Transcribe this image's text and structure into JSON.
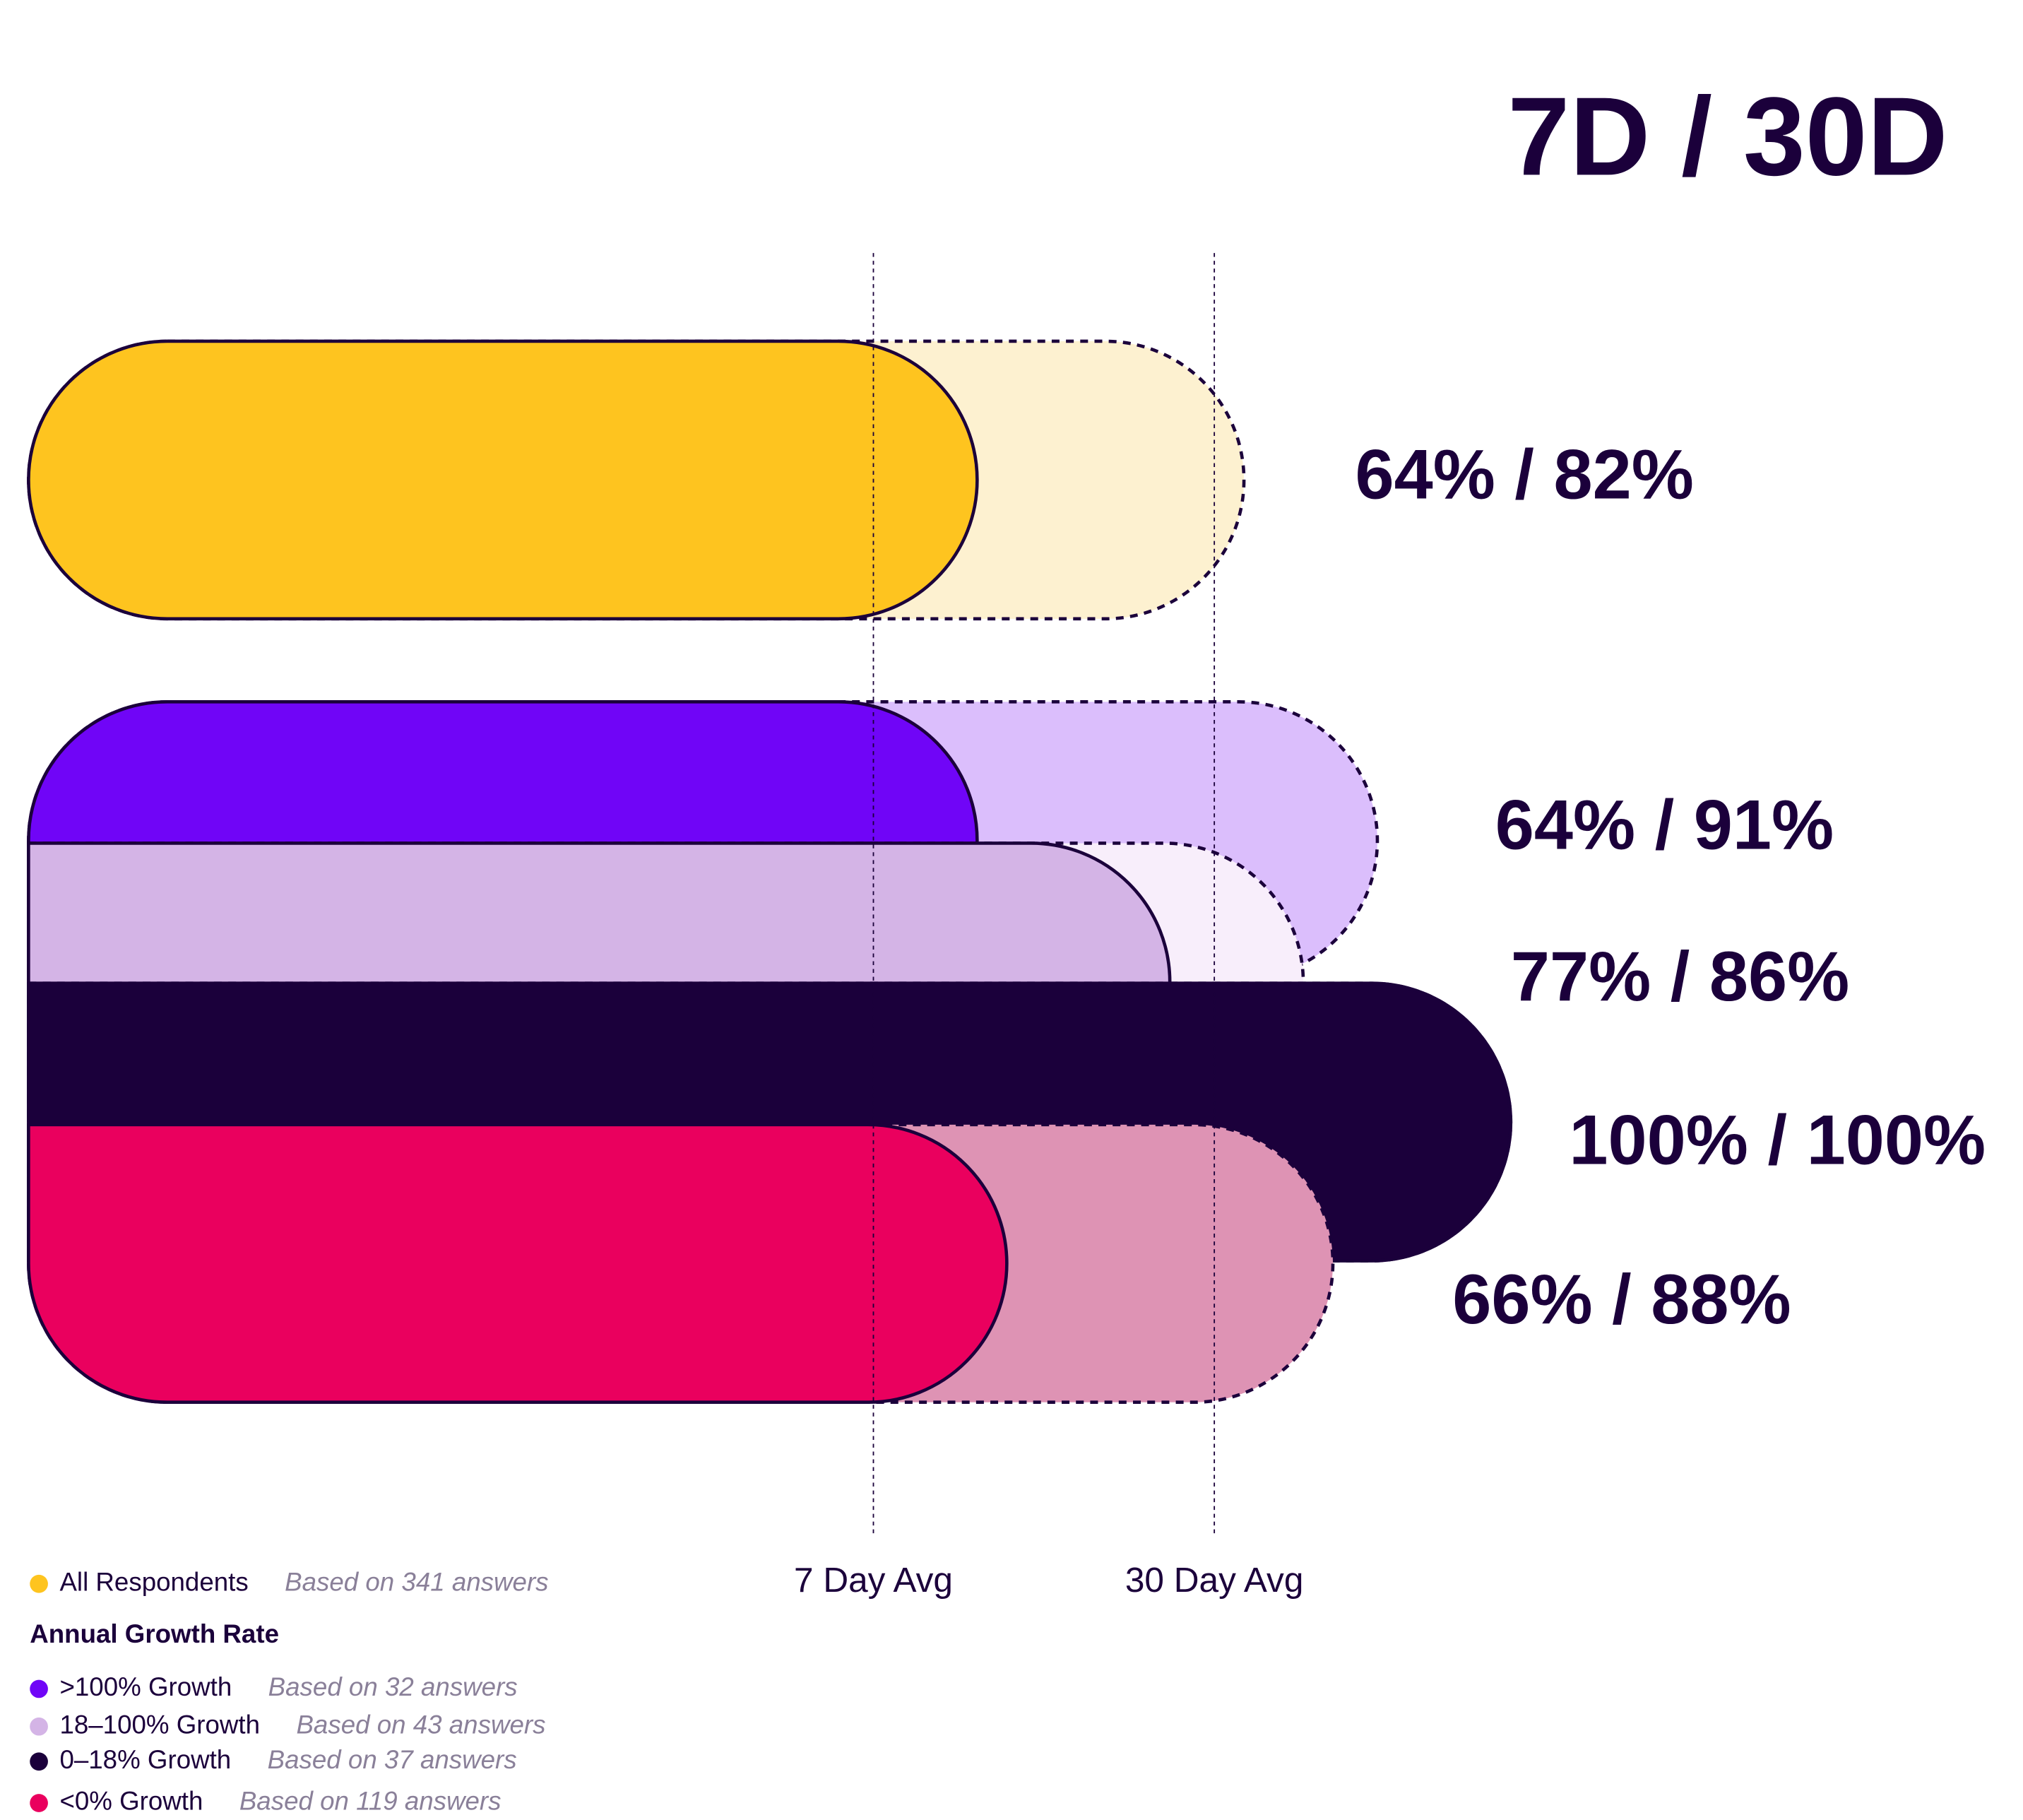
{
  "chart_data": {
    "type": "bar",
    "title": "7D / 30D",
    "xlim": [
      0,
      100
    ],
    "series": [
      {
        "name": "All Respondents",
        "note": "Based on 341 answers",
        "color": "#fec41f",
        "ghost_color": "#fdf1d0",
        "values": [
          64,
          82
        ],
        "label": "64% / 82%"
      },
      {
        "name": ">100% Growth",
        "note": "Based on 32 answers",
        "color": "#7005f7",
        "ghost_color": "#dbbefc",
        "values": [
          64,
          91
        ],
        "label": "64% / 91%"
      },
      {
        "name": "18–100% Growth",
        "note": "Based on 43 answers",
        "color": "#d4b4e6",
        "ghost_color": "#f8eefb",
        "values": [
          77,
          86
        ],
        "label": "77% / 86%"
      },
      {
        "name": "0–18% Growth",
        "note": "Based on 37 answers",
        "color": "#1b003b",
        "ghost_color": "#1b003b",
        "values": [
          100,
          100
        ],
        "label": "100% / 100%"
      },
      {
        "name": "<0% Growth",
        "note": "Based on 119 answers",
        "color": "#ea005e",
        "ghost_color": "#de93b4",
        "values": [
          66,
          88
        ],
        "label": "66% / 88%"
      }
    ],
    "legend_heading": "Annual Growth Rate",
    "reference_lines": [
      {
        "label": "7 Day Avg",
        "value": 57
      },
      {
        "label": "30 Day Avg",
        "value": 80
      }
    ]
  }
}
